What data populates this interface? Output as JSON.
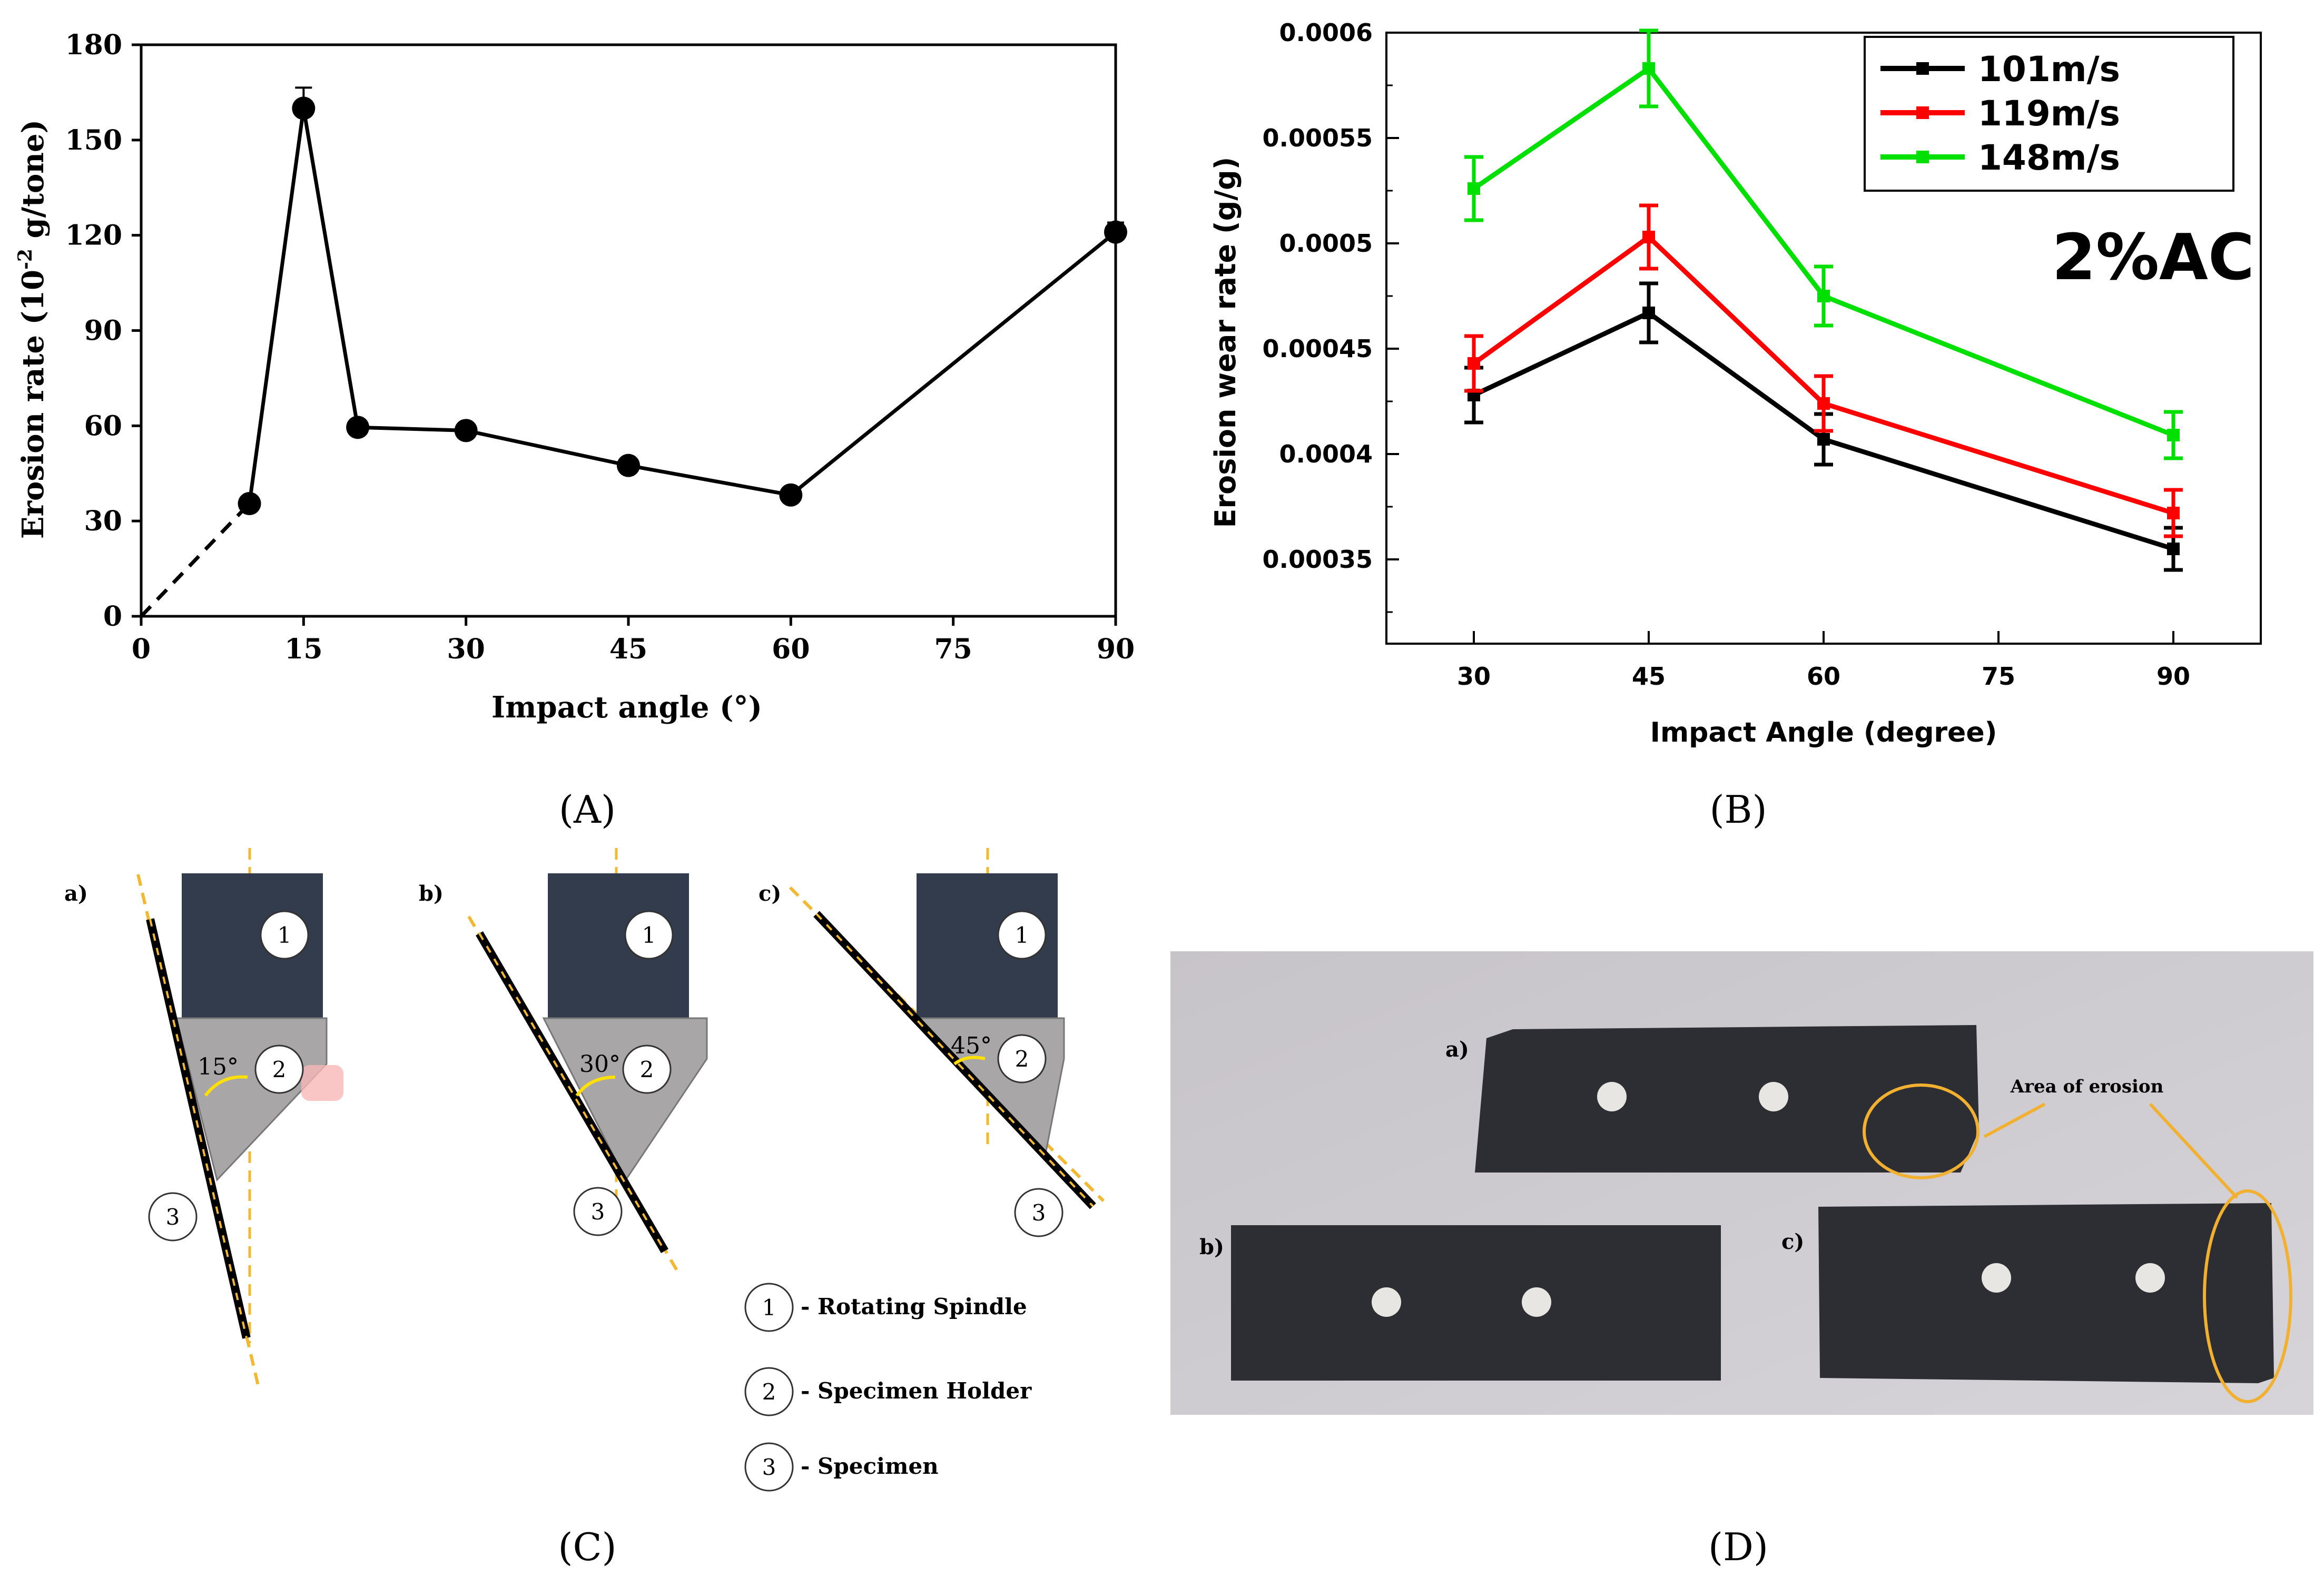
{
  "chart_data": [
    {
      "panel": "A",
      "type": "line",
      "xlabel": "Impact angle (°)",
      "ylabel": "Erosion rate (10-2 g/tone)",
      "ylabel_main": "Erosion rate (10",
      "ylabel_sup": "-2",
      "ylabel_tail": " g/tone)",
      "xlim": [
        0,
        90
      ],
      "ylim": [
        0,
        180
      ],
      "xticks": [
        0,
        15,
        30,
        45,
        60,
        75,
        90
      ],
      "yticks": [
        0,
        30,
        60,
        90,
        120,
        150,
        180
      ],
      "series": [
        {
          "x": [
            10,
            15,
            20,
            30,
            45,
            60,
            90
          ],
          "y": [
            35.5,
            160,
            59.5,
            58.5,
            47.5,
            38.2,
            121
          ],
          "error_plus": [
            0,
            6.5,
            0,
            0,
            0,
            0,
            3
          ],
          "color": "#000000"
        }
      ],
      "extrapolation": {
        "x": [
          0,
          10
        ],
        "y": [
          0,
          35.5
        ],
        "style": "dashed"
      },
      "grid": false
    },
    {
      "panel": "B",
      "type": "line",
      "xlabel": "Impact Angle (degree)",
      "ylabel": "Erosion wear rate (g/g)",
      "annotation": "2%AC",
      "xlim": [
        22.5,
        97.5
      ],
      "ylim": [
        0.00031,
        0.0006
      ],
      "xticks": [
        30,
        45,
        60,
        75,
        90
      ],
      "yticks": [
        0.00035,
        0.0004,
        0.00045,
        0.0005,
        0.00055,
        0.0006
      ],
      "yticklabels": [
        "0.00035",
        "0.0004",
        "0.00045",
        "0.0005",
        "0.00055",
        "0.0006"
      ],
      "legend_position": "top-right",
      "series": [
        {
          "name": "101m/s",
          "color": "#000000",
          "x": [
            30,
            45,
            60,
            90
          ],
          "y": [
            0.000428,
            0.000467,
            0.000407,
            0.000355
          ],
          "err": [
            1.3e-05,
            1.4e-05,
            1.2e-05,
            1e-05
          ]
        },
        {
          "name": "119m/s",
          "color": "#ff0000",
          "x": [
            30,
            45,
            60,
            90
          ],
          "y": [
            0.000443,
            0.000503,
            0.000424,
            0.000372
          ],
          "err": [
            1.3e-05,
            1.5e-05,
            1.3e-05,
            1.1e-05
          ]
        },
        {
          "name": "148m/s",
          "color": "#00e000",
          "x": [
            30,
            45,
            60,
            90
          ],
          "y": [
            0.000526,
            0.000583,
            0.000475,
            0.000409
          ],
          "err": [
            1.5e-05,
            1.8e-05,
            1.4e-05,
            1.1e-05
          ]
        }
      ],
      "grid": false
    }
  ],
  "captions": {
    "a": "(A)",
    "b": "(B)",
    "c": "(C)",
    "d": "(D)"
  },
  "diagram_c": {
    "sub_labels": [
      "a)",
      "b)",
      "c)"
    ],
    "angles": [
      "15°",
      "30°",
      "45°"
    ],
    "numbers": [
      "1",
      "2",
      "3"
    ],
    "legend": [
      {
        "num": "1",
        "text": "- Rotating Spindle"
      },
      {
        "num": "2",
        "text": "- Specimen Holder"
      },
      {
        "num": "3",
        "text": "- Specimen"
      }
    ],
    "colors": {
      "spindle": "#333c4c",
      "holder": "#a9a6a8",
      "guide": "#f2b830",
      "arrow": "#ffe000"
    }
  },
  "photo_d": {
    "sub_labels": [
      "a)",
      "b)",
      "c)"
    ],
    "annotation": "Area of erosion",
    "colors": {
      "background": "#ccc9ce",
      "specimen": "#2c2e33",
      "highlight": "#f2b030"
    }
  }
}
